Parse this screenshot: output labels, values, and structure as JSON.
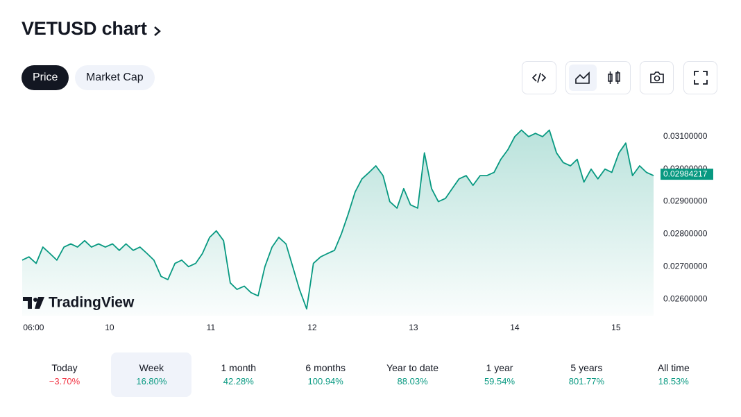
{
  "header": {
    "title": "VETUSD chart"
  },
  "tabs": [
    "Price",
    "Market Cap"
  ],
  "active_tab": 0,
  "chart_data": {
    "type": "line",
    "color": "#089981",
    "x": [
      3.3,
      4.9,
      6.6,
      8.2,
      9.9,
      11.5,
      13.2,
      14.8,
      16.4,
      18.1,
      19.7,
      21.4,
      23.0,
      24.7,
      26.3,
      27.9,
      29.6,
      31.2,
      32.9,
      34.5,
      36.2,
      37.8,
      39.5,
      41.1,
      42.7,
      44.4,
      46.0,
      47.7,
      49.3,
      51.0,
      52.6,
      54.2,
      55.9,
      57.5,
      59.2,
      60.8,
      62.5,
      64.1,
      65.8,
      67.4,
      69.0,
      70.7,
      72.3,
      74.0,
      75.6,
      77.3,
      78.9,
      80.5,
      82.2,
      83.8,
      85.5,
      87.1,
      88.8,
      90.4,
      92.1,
      93.7,
      95.3,
      97.0,
      98.6,
      100.3,
      101.9,
      103.6,
      105.2,
      106.8,
      108.5,
      110.1,
      111.8,
      113.4,
      115.1,
      116.7,
      118.4,
      120.0,
      121.6,
      123.3,
      124.9,
      126.6,
      128.2,
      129.9,
      131.5,
      133.2,
      134.8,
      136.4,
      138.1,
      139.7,
      141.4,
      143.0,
      144.7,
      146.3,
      147.9,
      149.6,
      151.2,
      152.9
    ],
    "values": [
      0.0272,
      0.0273,
      0.0271,
      0.0276,
      0.0274,
      0.0272,
      0.0276,
      0.0277,
      0.0276,
      0.0278,
      0.0276,
      0.0277,
      0.0276,
      0.0277,
      0.0275,
      0.0277,
      0.0275,
      0.0276,
      0.0274,
      0.0272,
      0.0267,
      0.0266,
      0.0271,
      0.0272,
      0.027,
      0.0271,
      0.0274,
      0.0279,
      0.0281,
      0.0278,
      0.0265,
      0.0263,
      0.0264,
      0.0262,
      0.0261,
      0.027,
      0.0276,
      0.0279,
      0.0277,
      0.027,
      0.0263,
      0.0257,
      0.0271,
      0.0273,
      0.0274,
      0.0275,
      0.028,
      0.0286,
      0.0293,
      0.0297,
      0.0299,
      0.0301,
      0.0298,
      0.029,
      0.0288,
      0.0294,
      0.0289,
      0.0288,
      0.0305,
      0.0294,
      0.029,
      0.0291,
      0.0294,
      0.0297,
      0.0298,
      0.0295,
      0.0298,
      0.0298,
      0.0299,
      0.0303,
      0.0306,
      0.031,
      0.0312,
      0.031,
      0.0311,
      0.031,
      0.0312,
      0.0305,
      0.0302,
      0.0301,
      0.0303,
      0.0296,
      0.03,
      0.0297,
      0.03,
      0.0299,
      0.0305,
      0.0308,
      0.0298,
      0.0301,
      0.0299,
      0.0298
    ],
    "xlim": [
      3.3,
      152.9
    ],
    "ylim": [
      0.02549,
      0.032
    ],
    "xticks": [
      {
        "value": 6,
        "label": "06:00"
      },
      {
        "value": 24,
        "label": "10"
      },
      {
        "value": 48,
        "label": "11"
      },
      {
        "value": 72,
        "label": "12"
      },
      {
        "value": 96,
        "label": "13"
      },
      {
        "value": 120,
        "label": "14"
      },
      {
        "value": 144,
        "label": "15"
      }
    ],
    "yticks": [
      {
        "value": 0.026,
        "label": "0.02600000"
      },
      {
        "value": 0.027,
        "label": "0.02700000"
      },
      {
        "value": 0.028,
        "label": "0.02800000"
      },
      {
        "value": 0.029,
        "label": "0.02900000"
      },
      {
        "value": 0.03,
        "label": "0.03000000"
      },
      {
        "value": 0.031,
        "label": "0.03100000"
      }
    ],
    "last_price": 0.02984217,
    "watermark": "TradingView"
  },
  "periods": [
    {
      "label": "Today",
      "change": "−3.70%"
    },
    {
      "label": "Week",
      "change": "16.80%"
    },
    {
      "label": "1 month",
      "change": "42.28%"
    },
    {
      "label": "6 months",
      "change": "100.94%"
    },
    {
      "label": "Year to date",
      "change": "88.03%"
    },
    {
      "label": "1 year",
      "change": "59.54%"
    },
    {
      "label": "5 years",
      "change": "801.77%"
    },
    {
      "label": "All time",
      "change": "18.53%"
    }
  ],
  "active_period": 1
}
